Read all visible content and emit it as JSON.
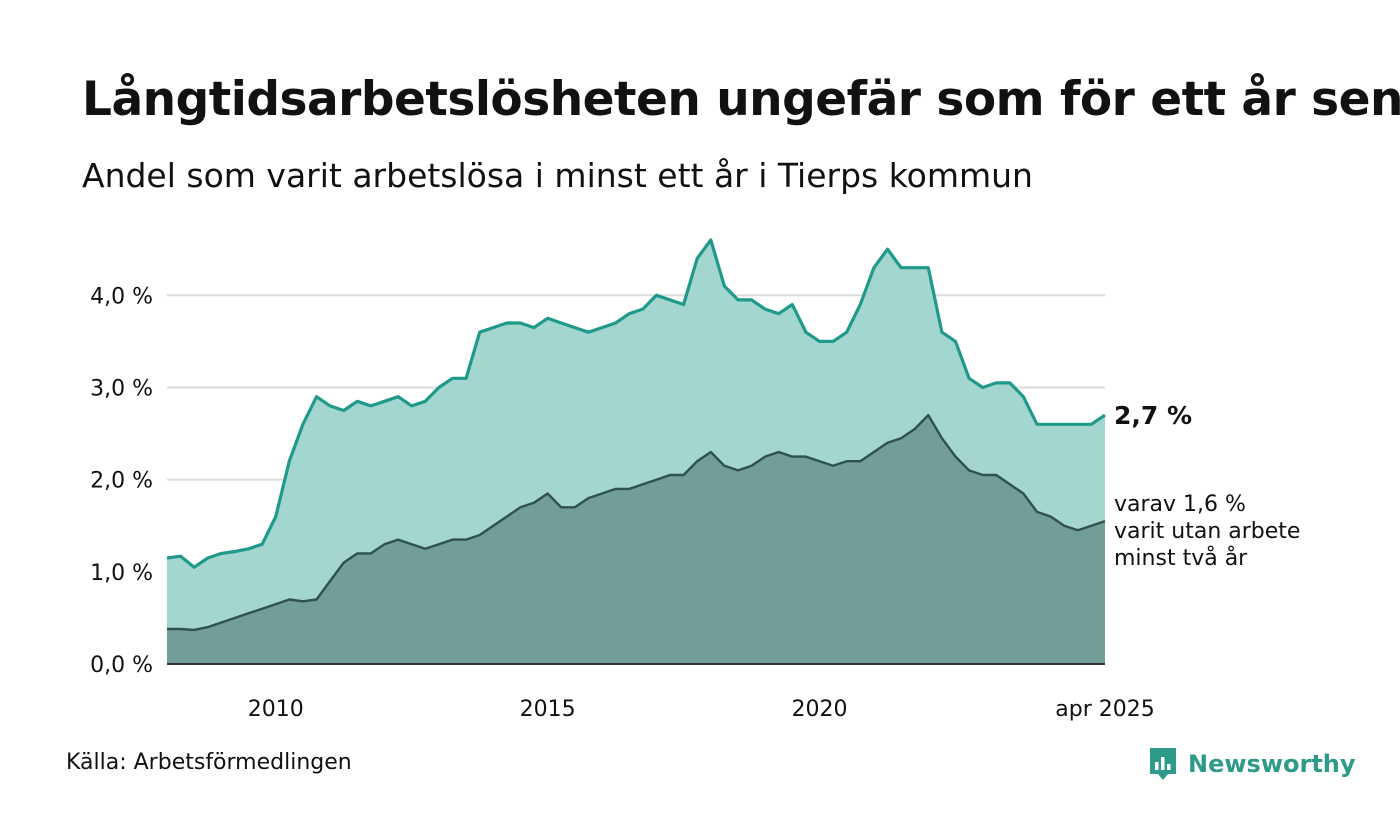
{
  "title": "Långtidsarbetslösheten ungefär som för ett år sen",
  "subtitle": "Andel som varit arbetslösa i minst ett år i Tierps kommun",
  "source": "Källa: Arbetsförmedlingen",
  "brand": {
    "name": "Newsworthy",
    "icon": "newsworthy-logo-icon",
    "color": "#2e9a8a"
  },
  "annotations": {
    "latest_total": "2,7 %",
    "latest_sub_lines": [
      "varav 1,6 %",
      "varit utan arbete",
      "minst två år"
    ]
  },
  "colors": {
    "upper_line": "#1f9a8a",
    "upper_fill": "#a4d6d0",
    "lower_line": "#2f524d",
    "lower_fill": "#729e98",
    "grid": "#dcdcdc",
    "axis": "#333333"
  },
  "chart_data": {
    "type": "area",
    "title": "Långtidsarbetslösheten ungefär som för ett år sen",
    "subtitle": "Andel som varit arbetslösa i minst ett år i Tierps kommun",
    "xlabel": "",
    "ylabel": "",
    "x_range": [
      "2008-01",
      "2025-04"
    ],
    "ylim": [
      0,
      4.6
    ],
    "yticks": [
      0,
      1,
      2,
      3,
      4
    ],
    "ytick_labels": [
      "0,0 %",
      "1,0 %",
      "2,0 %",
      "3,0 %",
      "4,0 %"
    ],
    "xticks": [
      "2010-01",
      "2015-01",
      "2020-01",
      "2025-04"
    ],
    "xtick_labels": [
      "2010",
      "2015",
      "2020",
      "apr 2025"
    ],
    "grid": true,
    "series": [
      {
        "key": "total",
        "points": [
          [
            "2008-01",
            1.15
          ],
          [
            "2008-04",
            1.17
          ],
          [
            "2008-07",
            1.05
          ],
          [
            "2008-10",
            1.15
          ],
          [
            "2009-01",
            1.2
          ],
          [
            "2009-04",
            1.22
          ],
          [
            "2009-07",
            1.25
          ],
          [
            "2009-10",
            1.3
          ],
          [
            "2010-01",
            1.6
          ],
          [
            "2010-04",
            2.2
          ],
          [
            "2010-07",
            2.6
          ],
          [
            "2010-10",
            2.9
          ],
          [
            "2011-01",
            2.8
          ],
          [
            "2011-04",
            2.75
          ],
          [
            "2011-07",
            2.85
          ],
          [
            "2011-10",
            2.8
          ],
          [
            "2012-01",
            2.85
          ],
          [
            "2012-04",
            2.9
          ],
          [
            "2012-07",
            2.8
          ],
          [
            "2012-10",
            2.85
          ],
          [
            "2013-01",
            3.0
          ],
          [
            "2013-04",
            3.1
          ],
          [
            "2013-07",
            3.1
          ],
          [
            "2013-10",
            3.6
          ],
          [
            "2014-01",
            3.65
          ],
          [
            "2014-04",
            3.7
          ],
          [
            "2014-07",
            3.7
          ],
          [
            "2014-10",
            3.65
          ],
          [
            "2015-01",
            3.75
          ],
          [
            "2015-04",
            3.7
          ],
          [
            "2015-07",
            3.65
          ],
          [
            "2015-10",
            3.6
          ],
          [
            "2016-01",
            3.65
          ],
          [
            "2016-04",
            3.7
          ],
          [
            "2016-07",
            3.8
          ],
          [
            "2016-10",
            3.85
          ],
          [
            "2017-01",
            4.0
          ],
          [
            "2017-04",
            3.95
          ],
          [
            "2017-07",
            3.9
          ],
          [
            "2017-10",
            4.4
          ],
          [
            "2018-01",
            4.6
          ],
          [
            "2018-04",
            4.1
          ],
          [
            "2018-07",
            3.95
          ],
          [
            "2018-10",
            3.95
          ],
          [
            "2019-01",
            3.85
          ],
          [
            "2019-04",
            3.8
          ],
          [
            "2019-07",
            3.9
          ],
          [
            "2019-10",
            3.6
          ],
          [
            "2020-01",
            3.5
          ],
          [
            "2020-04",
            3.5
          ],
          [
            "2020-07",
            3.6
          ],
          [
            "2020-10",
            3.9
          ],
          [
            "2021-01",
            4.3
          ],
          [
            "2021-04",
            4.5
          ],
          [
            "2021-07",
            4.3
          ],
          [
            "2021-10",
            4.3
          ],
          [
            "2022-01",
            4.3
          ],
          [
            "2022-04",
            3.6
          ],
          [
            "2022-07",
            3.5
          ],
          [
            "2022-10",
            3.1
          ],
          [
            "2023-01",
            3.0
          ],
          [
            "2023-04",
            3.05
          ],
          [
            "2023-07",
            3.05
          ],
          [
            "2023-10",
            2.9
          ],
          [
            "2024-01",
            2.6
          ],
          [
            "2024-04",
            2.6
          ],
          [
            "2024-07",
            2.6
          ],
          [
            "2024-10",
            2.6
          ],
          [
            "2025-01",
            2.6
          ],
          [
            "2025-04",
            2.7
          ]
        ]
      },
      {
        "key": "two_years",
        "points": [
          [
            "2008-01",
            0.38
          ],
          [
            "2008-04",
            0.38
          ],
          [
            "2008-07",
            0.37
          ],
          [
            "2008-10",
            0.4
          ],
          [
            "2009-01",
            0.45
          ],
          [
            "2009-04",
            0.5
          ],
          [
            "2009-07",
            0.55
          ],
          [
            "2009-10",
            0.6
          ],
          [
            "2010-01",
            0.65
          ],
          [
            "2010-04",
            0.7
          ],
          [
            "2010-07",
            0.68
          ],
          [
            "2010-10",
            0.7
          ],
          [
            "2011-01",
            0.9
          ],
          [
            "2011-04",
            1.1
          ],
          [
            "2011-07",
            1.2
          ],
          [
            "2011-10",
            1.2
          ],
          [
            "2012-01",
            1.3
          ],
          [
            "2012-04",
            1.35
          ],
          [
            "2012-07",
            1.3
          ],
          [
            "2012-10",
            1.25
          ],
          [
            "2013-01",
            1.3
          ],
          [
            "2013-04",
            1.35
          ],
          [
            "2013-07",
            1.35
          ],
          [
            "2013-10",
            1.4
          ],
          [
            "2014-01",
            1.5
          ],
          [
            "2014-04",
            1.6
          ],
          [
            "2014-07",
            1.7
          ],
          [
            "2014-10",
            1.75
          ],
          [
            "2015-01",
            1.85
          ],
          [
            "2015-04",
            1.7
          ],
          [
            "2015-07",
            1.7
          ],
          [
            "2015-10",
            1.8
          ],
          [
            "2016-01",
            1.85
          ],
          [
            "2016-04",
            1.9
          ],
          [
            "2016-07",
            1.9
          ],
          [
            "2016-10",
            1.95
          ],
          [
            "2017-01",
            2.0
          ],
          [
            "2017-04",
            2.05
          ],
          [
            "2017-07",
            2.05
          ],
          [
            "2017-10",
            2.2
          ],
          [
            "2018-01",
            2.3
          ],
          [
            "2018-04",
            2.15
          ],
          [
            "2018-07",
            2.1
          ],
          [
            "2018-10",
            2.15
          ],
          [
            "2019-01",
            2.25
          ],
          [
            "2019-04",
            2.3
          ],
          [
            "2019-07",
            2.25
          ],
          [
            "2019-10",
            2.25
          ],
          [
            "2020-01",
            2.2
          ],
          [
            "2020-04",
            2.15
          ],
          [
            "2020-07",
            2.2
          ],
          [
            "2020-10",
            2.2
          ],
          [
            "2021-01",
            2.3
          ],
          [
            "2021-04",
            2.4
          ],
          [
            "2021-07",
            2.45
          ],
          [
            "2021-10",
            2.55
          ],
          [
            "2022-01",
            2.7
          ],
          [
            "2022-04",
            2.45
          ],
          [
            "2022-07",
            2.25
          ],
          [
            "2022-10",
            2.1
          ],
          [
            "2023-01",
            2.05
          ],
          [
            "2023-04",
            2.05
          ],
          [
            "2023-07",
            1.95
          ],
          [
            "2023-10",
            1.85
          ],
          [
            "2024-01",
            1.65
          ],
          [
            "2024-04",
            1.6
          ],
          [
            "2024-07",
            1.5
          ],
          [
            "2024-10",
            1.45
          ],
          [
            "2025-01",
            1.5
          ],
          [
            "2025-04",
            1.55
          ]
        ]
      }
    ]
  }
}
